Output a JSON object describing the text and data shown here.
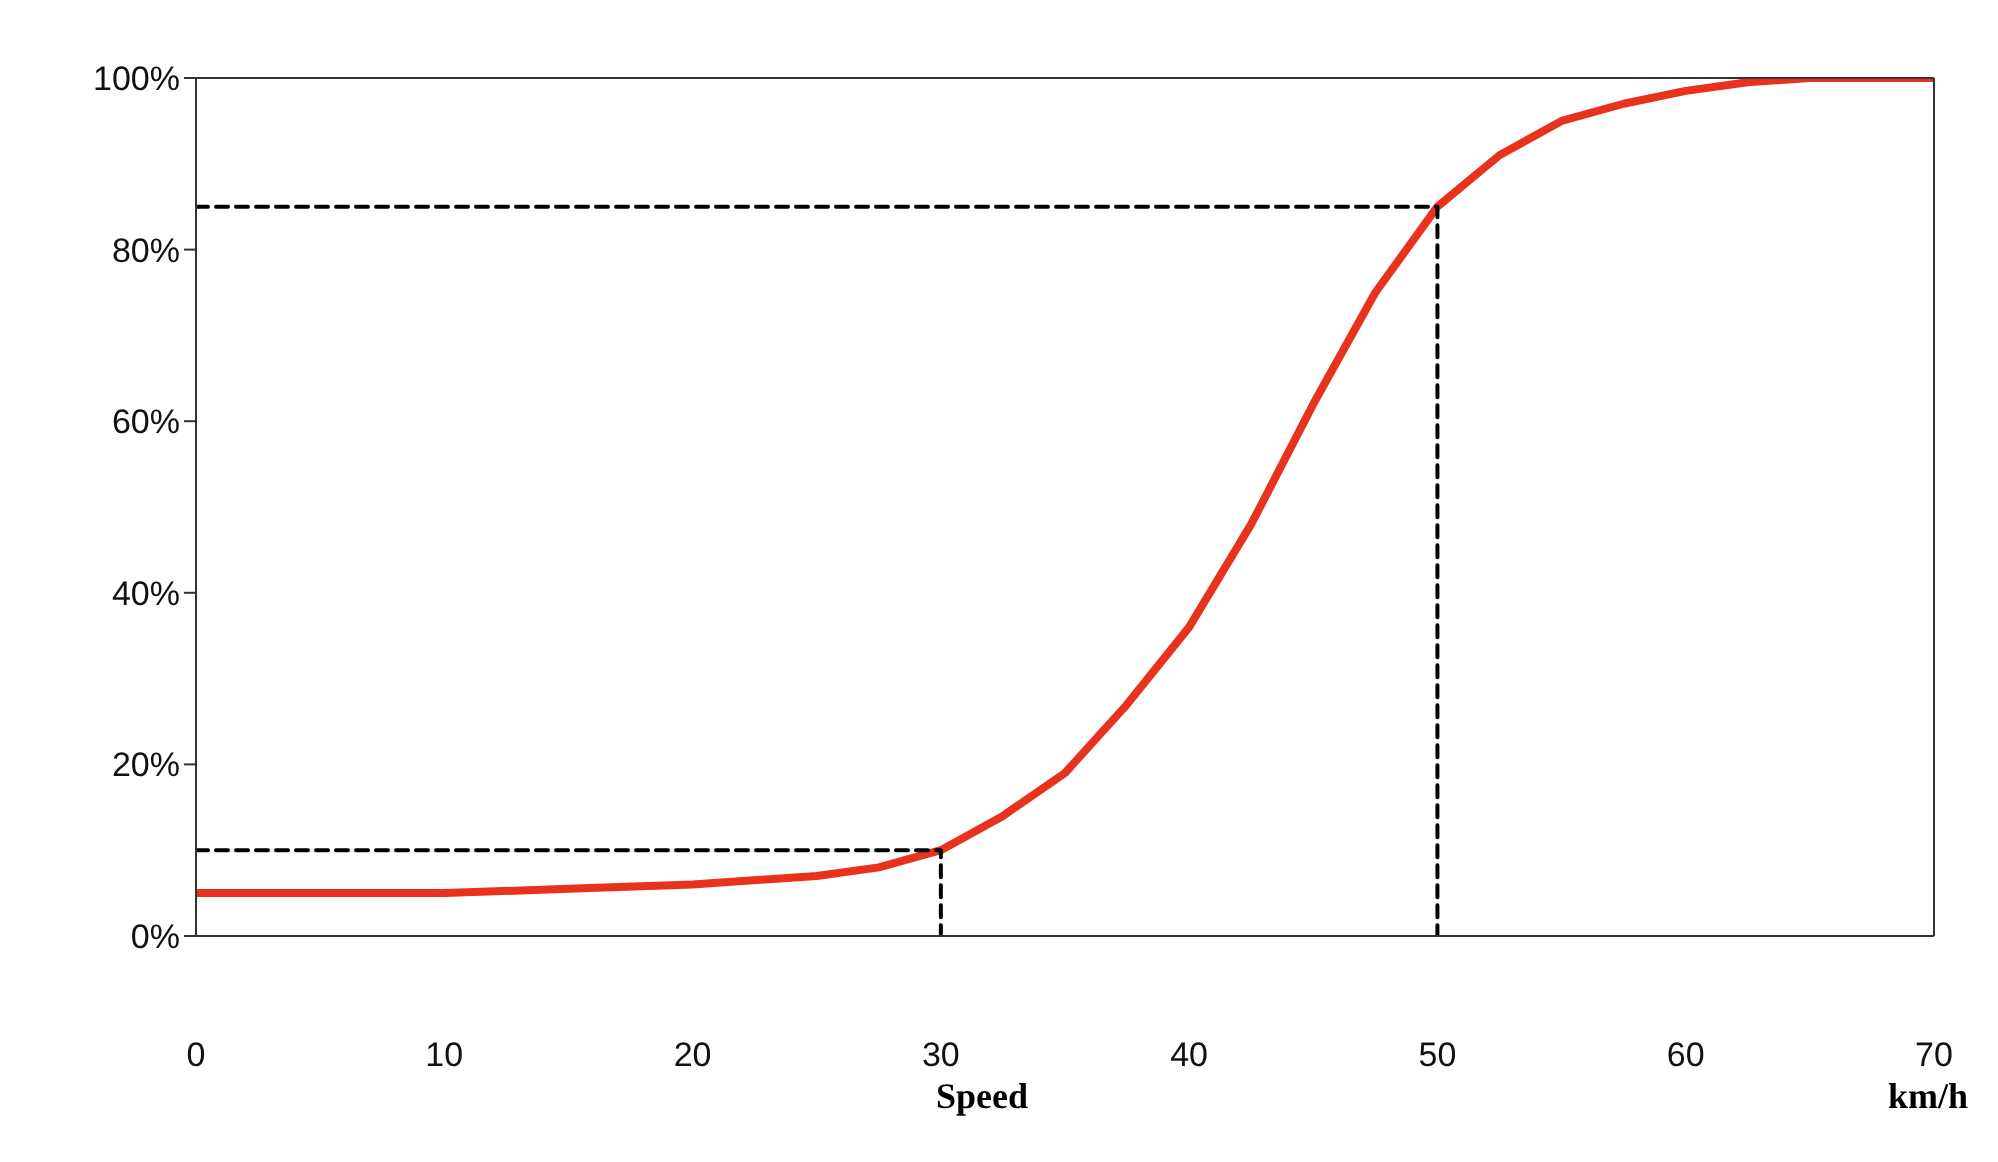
{
  "chart_data": {
    "type": "line",
    "xlabel": "Speed",
    "annotations": [
      "km/h"
    ],
    "xlim": [
      0,
      70
    ],
    "xticks": [
      0,
      10,
      20,
      30,
      40,
      50,
      60,
      70
    ],
    "ylim": [
      0,
      100
    ],
    "yticks": [
      {
        "value": 0,
        "label": "0%"
      },
      {
        "value": 20,
        "label": "20%"
      },
      {
        "value": 40,
        "label": "40%"
      },
      {
        "value": 60,
        "label": "60%"
      },
      {
        "value": 80,
        "label": "80%"
      },
      {
        "value": 100,
        "label": "100%"
      }
    ],
    "marker": "none",
    "series": [
      {
        "color": "#e8321e",
        "line_style": "solid",
        "x": [
          0,
          5,
          10,
          15,
          20,
          25,
          27.5,
          30,
          32.5,
          35,
          37.5,
          40,
          42.5,
          45,
          47.5,
          50,
          52.5,
          55,
          57.5,
          60,
          62.5,
          65,
          70
        ],
        "values": [
          5,
          5,
          5,
          5.5,
          6,
          7,
          8,
          10,
          14,
          19,
          27,
          36,
          48,
          62,
          75,
          85,
          91,
          95,
          97,
          98.5,
          99.5,
          100,
          100
        ]
      },
      {
        "color": "#000000",
        "line_style": "dashed",
        "x": [
          0,
          30,
          30
        ],
        "values": [
          10,
          10,
          0
        ]
      },
      {
        "color": "#000000",
        "line_style": "dashed",
        "x": [
          0,
          50,
          50
        ],
        "values": [
          85,
          85,
          0
        ]
      }
    ]
  }
}
